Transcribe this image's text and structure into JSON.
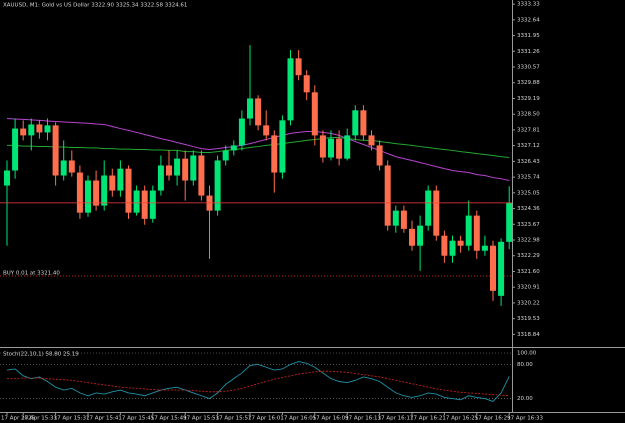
{
  "chart_data": [
    {
      "type": "candlestick",
      "title": "XAUUSD, M1:  Gold vs US Dollar  3322.90 3325.34 3322.58 3324.61",
      "categories": [
        "17 Apr 2025",
        null,
        "17 Apr 15:33",
        null,
        null,
        null,
        "17 Apr 15:37",
        null,
        null,
        null,
        "17 Apr 15:41",
        null,
        null,
        null,
        "17 Apr 15:45",
        null,
        null,
        null,
        "17 Apr 15:49",
        null,
        null,
        null,
        "17 Apr 15:53",
        null,
        null,
        null,
        "17 Apr 15:57",
        null,
        null,
        null,
        "17 Apr 16:01",
        null,
        null,
        null,
        "17 Apr 16:05",
        null,
        null,
        null,
        "17 Apr 16:09",
        null,
        null,
        null,
        "17 Apr 16:13",
        null,
        null,
        null,
        "17 Apr 16:17",
        null,
        null,
        null,
        "17 Apr 16:21",
        null,
        null,
        null,
        "17 Apr 16:25",
        null,
        null,
        null,
        "17 Apr 16:29",
        null,
        null,
        null,
        "17 Apr 16:33"
      ],
      "open": [
        3325.37,
        3326.03,
        3327.87,
        3327.57,
        3328.05,
        3327.7,
        3328.01,
        3325.81,
        3326.47,
        3325.94,
        3324.18,
        3325.59,
        3324.49,
        3325.81,
        3325.15,
        3326.11,
        3324.18,
        3325.15,
        3323.91,
        3325.15,
        3326.25,
        3325.81,
        3326.55,
        3325.59,
        3326.69,
        3324.93,
        3324.27,
        3326.47,
        3326.91,
        3327.13,
        3328.31,
        3329.19,
        3328.01,
        3327.57,
        3325.94,
        3328.23,
        3330.95,
        3330.21,
        3329.46,
        3327.57,
        3326.6,
        3327.43,
        3326.55,
        3327.57,
        3328.67,
        3327.57,
        3327.13,
        3326.25,
        3323.61,
        3324.27,
        3323.47,
        3322.73,
        3323.61,
        3325.15,
        3323.17,
        3322.29,
        3322.95,
        3322.73,
        3324.05,
        3322.51,
        3322.73,
        3320.53,
        3322.9
      ],
      "high": [
        3326.47,
        3328.31,
        3328.23,
        3328.31,
        3328.23,
        3328.31,
        3328.14,
        3327.35,
        3326.91,
        3326.25,
        3325.81,
        3326.03,
        3326.47,
        3326.11,
        3326.47,
        3326.25,
        3325.37,
        3325.37,
        3325.37,
        3326.69,
        3326.91,
        3326.91,
        3326.91,
        3326.91,
        3326.91,
        3325.37,
        3326.69,
        3327.13,
        3327.35,
        3328.67,
        3331.53,
        3329.33,
        3328.67,
        3327.79,
        3328.45,
        3331.31,
        3331.31,
        3330.43,
        3329.77,
        3327.79,
        3327.79,
        3327.79,
        3327.87,
        3328.89,
        3328.89,
        3327.79,
        3327.35,
        3326.47,
        3324.49,
        3324.49,
        3323.83,
        3324.05,
        3325.37,
        3325.37,
        3323.39,
        3323.17,
        3323.17,
        3324.71,
        3324.27,
        3323.17,
        3322.95,
        3323.05,
        3325.34
      ],
      "low": [
        3322.73,
        3325.67,
        3327.35,
        3326.91,
        3327.43,
        3327.35,
        3325.37,
        3325.59,
        3325.76,
        3323.91,
        3324.0,
        3324.27,
        3324.27,
        3324.88,
        3324.88,
        3323.91,
        3324.05,
        3323.65,
        3323.74,
        3324.93,
        3325.59,
        3325.37,
        3324.71,
        3325.37,
        3324.71,
        3322.15,
        3324.05,
        3326.25,
        3326.69,
        3326.91,
        3328.01,
        3327.79,
        3327.35,
        3325.06,
        3325.67,
        3328.01,
        3329.99,
        3329.11,
        3327.13,
        3326.38,
        3326.47,
        3326.25,
        3326.47,
        3327.35,
        3327.35,
        3326.91,
        3326.03,
        3323.39,
        3323.3,
        3323.3,
        3322.51,
        3321.63,
        3323.39,
        3322.95,
        3321.98,
        3321.98,
        3322.42,
        3322.51,
        3322.15,
        3322.29,
        3320.31,
        3320.09,
        3322.58
      ],
      "close": [
        3326.03,
        3327.87,
        3327.57,
        3328.05,
        3327.7,
        3328.01,
        3325.81,
        3326.47,
        3325.94,
        3324.18,
        3325.59,
        3324.49,
        3325.81,
        3325.15,
        3326.11,
        3324.18,
        3325.15,
        3323.91,
        3325.15,
        3326.25,
        3325.81,
        3326.55,
        3325.59,
        3326.69,
        3324.93,
        3324.27,
        3326.47,
        3326.91,
        3327.13,
        3328.31,
        3329.19,
        3328.01,
        3327.57,
        3325.94,
        3328.23,
        3330.95,
        3330.21,
        3329.46,
        3327.57,
        3326.6,
        3327.43,
        3326.55,
        3327.57,
        3328.67,
        3327.57,
        3327.13,
        3326.25,
        3323.61,
        3324.27,
        3323.47,
        3322.73,
        3323.61,
        3325.15,
        3323.17,
        3322.29,
        3322.95,
        3322.73,
        3324.05,
        3322.51,
        3322.73,
        3320.75,
        3322.9,
        3324.61
      ],
      "bull_color": "#00e676",
      "bear_color": "#ff6f4e",
      "overlays": [
        {
          "color": "#b845d0",
          "values": [
            3328.31,
            3328.29,
            3328.27,
            3328.25,
            3328.23,
            3328.2,
            3328.18,
            3328.16,
            3328.14,
            3328.12,
            3328.1,
            3328.07,
            3328.05,
            3327.96,
            3327.87,
            3327.79,
            3327.7,
            3327.61,
            3327.52,
            3327.43,
            3327.35,
            3327.26,
            3327.17,
            3327.08,
            3326.99,
            3326.95,
            3326.99,
            3327.04,
            3327.08,
            3327.13,
            3327.21,
            3327.3,
            3327.39,
            3327.48,
            3327.57,
            3327.66,
            3327.7,
            3327.74,
            3327.74,
            3327.7,
            3327.66,
            3327.57,
            3327.43,
            3327.3,
            3327.17,
            3327.04,
            3326.91,
            3326.77,
            3326.64,
            3326.55,
            3326.47,
            3326.38,
            3326.29,
            3326.2,
            3326.11,
            3326.03,
            3325.98,
            3325.94,
            3325.85,
            3325.81,
            3325.72,
            3325.67,
            3325.59
          ]
        },
        {
          "color": "#22a832",
          "values": [
            3327.13,
            3327.13,
            3327.1,
            3327.1,
            3327.08,
            3327.08,
            3327.06,
            3327.06,
            3327.04,
            3327.04,
            3327.02,
            3327.02,
            3326.99,
            3326.99,
            3326.97,
            3326.97,
            3326.95,
            3326.95,
            3326.93,
            3326.93,
            3326.91,
            3326.91,
            3326.86,
            3326.86,
            3326.82,
            3326.82,
            3326.86,
            3326.91,
            3326.95,
            3326.99,
            3327.04,
            3327.08,
            3327.13,
            3327.17,
            3327.21,
            3327.26,
            3327.3,
            3327.35,
            3327.39,
            3327.43,
            3327.48,
            3327.48,
            3327.43,
            3327.39,
            3327.35,
            3327.35,
            3327.3,
            3327.26,
            3327.21,
            3327.17,
            3327.13,
            3327.08,
            3327.04,
            3326.99,
            3326.95,
            3326.91,
            3326.86,
            3326.82,
            3326.77,
            3326.73,
            3326.69,
            3326.64,
            3326.6
          ]
        }
      ],
      "order": {
        "text": "BUY 0.01 at 3321.40",
        "level": 3321.4,
        "color": "#d02020"
      },
      "ylim": [
        3318.33,
        3333.51
      ],
      "yticks": [
        3333.33,
        3332.64,
        3331.95,
        3331.26,
        3330.57,
        3329.88,
        3329.19,
        {
          "value": 3328.5,
          "label": "3328.50"
        },
        3327.81,
        3327.12,
        3326.43,
        3325.74,
        3325.05,
        3324.36,
        3323.67,
        3322.98,
        3322.29,
        {
          "value": 3321.6,
          "label": "3321.60"
        },
        3320.91,
        3320.22,
        3319.53,
        3318.84
      ],
      "grid": false
    },
    {
      "type": "line",
      "title": "Stoch(22,10,1) 58.80 25.19",
      "series": [
        {
          "color": "#1f93a8",
          "dash": false,
          "values": [
            70,
            72,
            60,
            55,
            58,
            50,
            40,
            35,
            38,
            30,
            25,
            30,
            28,
            32,
            35,
            30,
            28,
            25,
            30,
            35,
            38,
            40,
            35,
            30,
            25,
            20,
            30,
            45,
            55,
            65,
            78,
            80,
            75,
            70,
            72,
            80,
            85,
            82,
            75,
            65,
            55,
            50,
            48,
            52,
            58,
            55,
            50,
            40,
            30,
            25,
            22,
            25,
            30,
            28,
            22,
            20,
            18,
            25,
            22,
            20,
            15,
            30,
            58.8
          ]
        },
        {
          "color": "#c42222",
          "dash": true,
          "values": [
            55,
            55,
            56,
            56,
            56,
            55,
            54,
            53,
            52,
            50,
            48,
            46,
            44,
            42,
            40,
            39,
            38,
            37,
            36,
            35,
            35,
            35,
            35,
            34,
            33,
            32,
            32,
            33,
            35,
            38,
            42,
            46,
            50,
            54,
            57,
            60,
            63,
            65,
            67,
            68,
            68,
            67,
            66,
            64,
            62,
            60,
            58,
            55,
            52,
            49,
            46,
            43,
            40,
            37,
            35,
            33,
            31,
            30,
            29,
            28,
            27,
            26,
            25.19
          ]
        }
      ],
      "ylim": [
        0,
        100
      ],
      "yticks": [
        {
          "value": 100,
          "label": "100.00"
        },
        {
          "value": 80,
          "label": "80.00"
        },
        {
          "value": 20,
          "label": "20.00"
        }
      ]
    }
  ]
}
